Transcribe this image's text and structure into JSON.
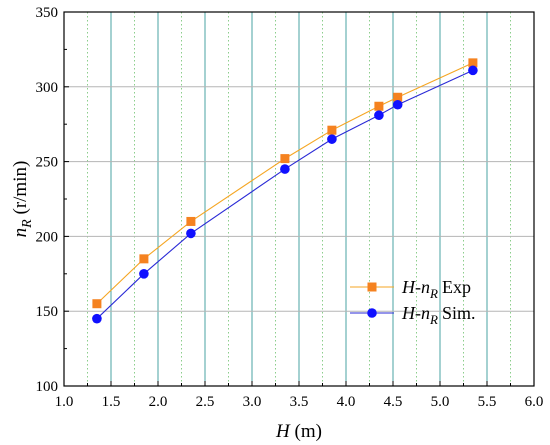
{
  "chart_data": {
    "type": "line",
    "title": "",
    "xlabel": {
      "var": "H",
      "unit": "(m)"
    },
    "ylabel": {
      "var": "n",
      "sub": "R",
      "unit": "(r/min)"
    },
    "xlim": [
      1.0,
      6.0
    ],
    "ylim": [
      100,
      350
    ],
    "xticks": [
      1.0,
      1.5,
      2.0,
      2.5,
      3.0,
      3.5,
      4.0,
      4.5,
      5.0,
      5.5,
      6.0
    ],
    "xtick_labels": [
      "1.0",
      "1.5",
      "2.0",
      "2.5",
      "3.0",
      "3.5",
      "4.0",
      "4.5",
      "5.0",
      "5.5",
      "6.0"
    ],
    "yticks": [
      100,
      150,
      200,
      250,
      300,
      350
    ],
    "ytick_labels": [
      "100",
      "150",
      "200",
      "250",
      "300",
      "350"
    ],
    "grid": true,
    "legend_position": "bottom-right",
    "series": [
      {
        "name": "H-nR Exp",
        "legend": {
          "a": "H",
          "b": "n",
          "sub": "R",
          "tail": "Exp"
        },
        "marker": "square",
        "color": "#f5a623",
        "marker_color": "#f58220",
        "x": [
          1.35,
          1.85,
          2.35,
          3.35,
          3.85,
          4.35,
          4.55,
          5.35
        ],
        "y": [
          155,
          185,
          210,
          252,
          271,
          287,
          293,
          316
        ]
      },
      {
        "name": "H-nR Sim.",
        "legend": {
          "a": "H",
          "b": "n",
          "sub": "R",
          "tail": "Sim."
        },
        "marker": "circle",
        "color": "#2a2ad6",
        "marker_color": "#1010ff",
        "x": [
          1.35,
          1.85,
          2.35,
          3.35,
          3.85,
          4.35,
          4.55,
          5.35
        ],
        "y": [
          145,
          175,
          202,
          245,
          265,
          281,
          288,
          311
        ]
      }
    ]
  }
}
